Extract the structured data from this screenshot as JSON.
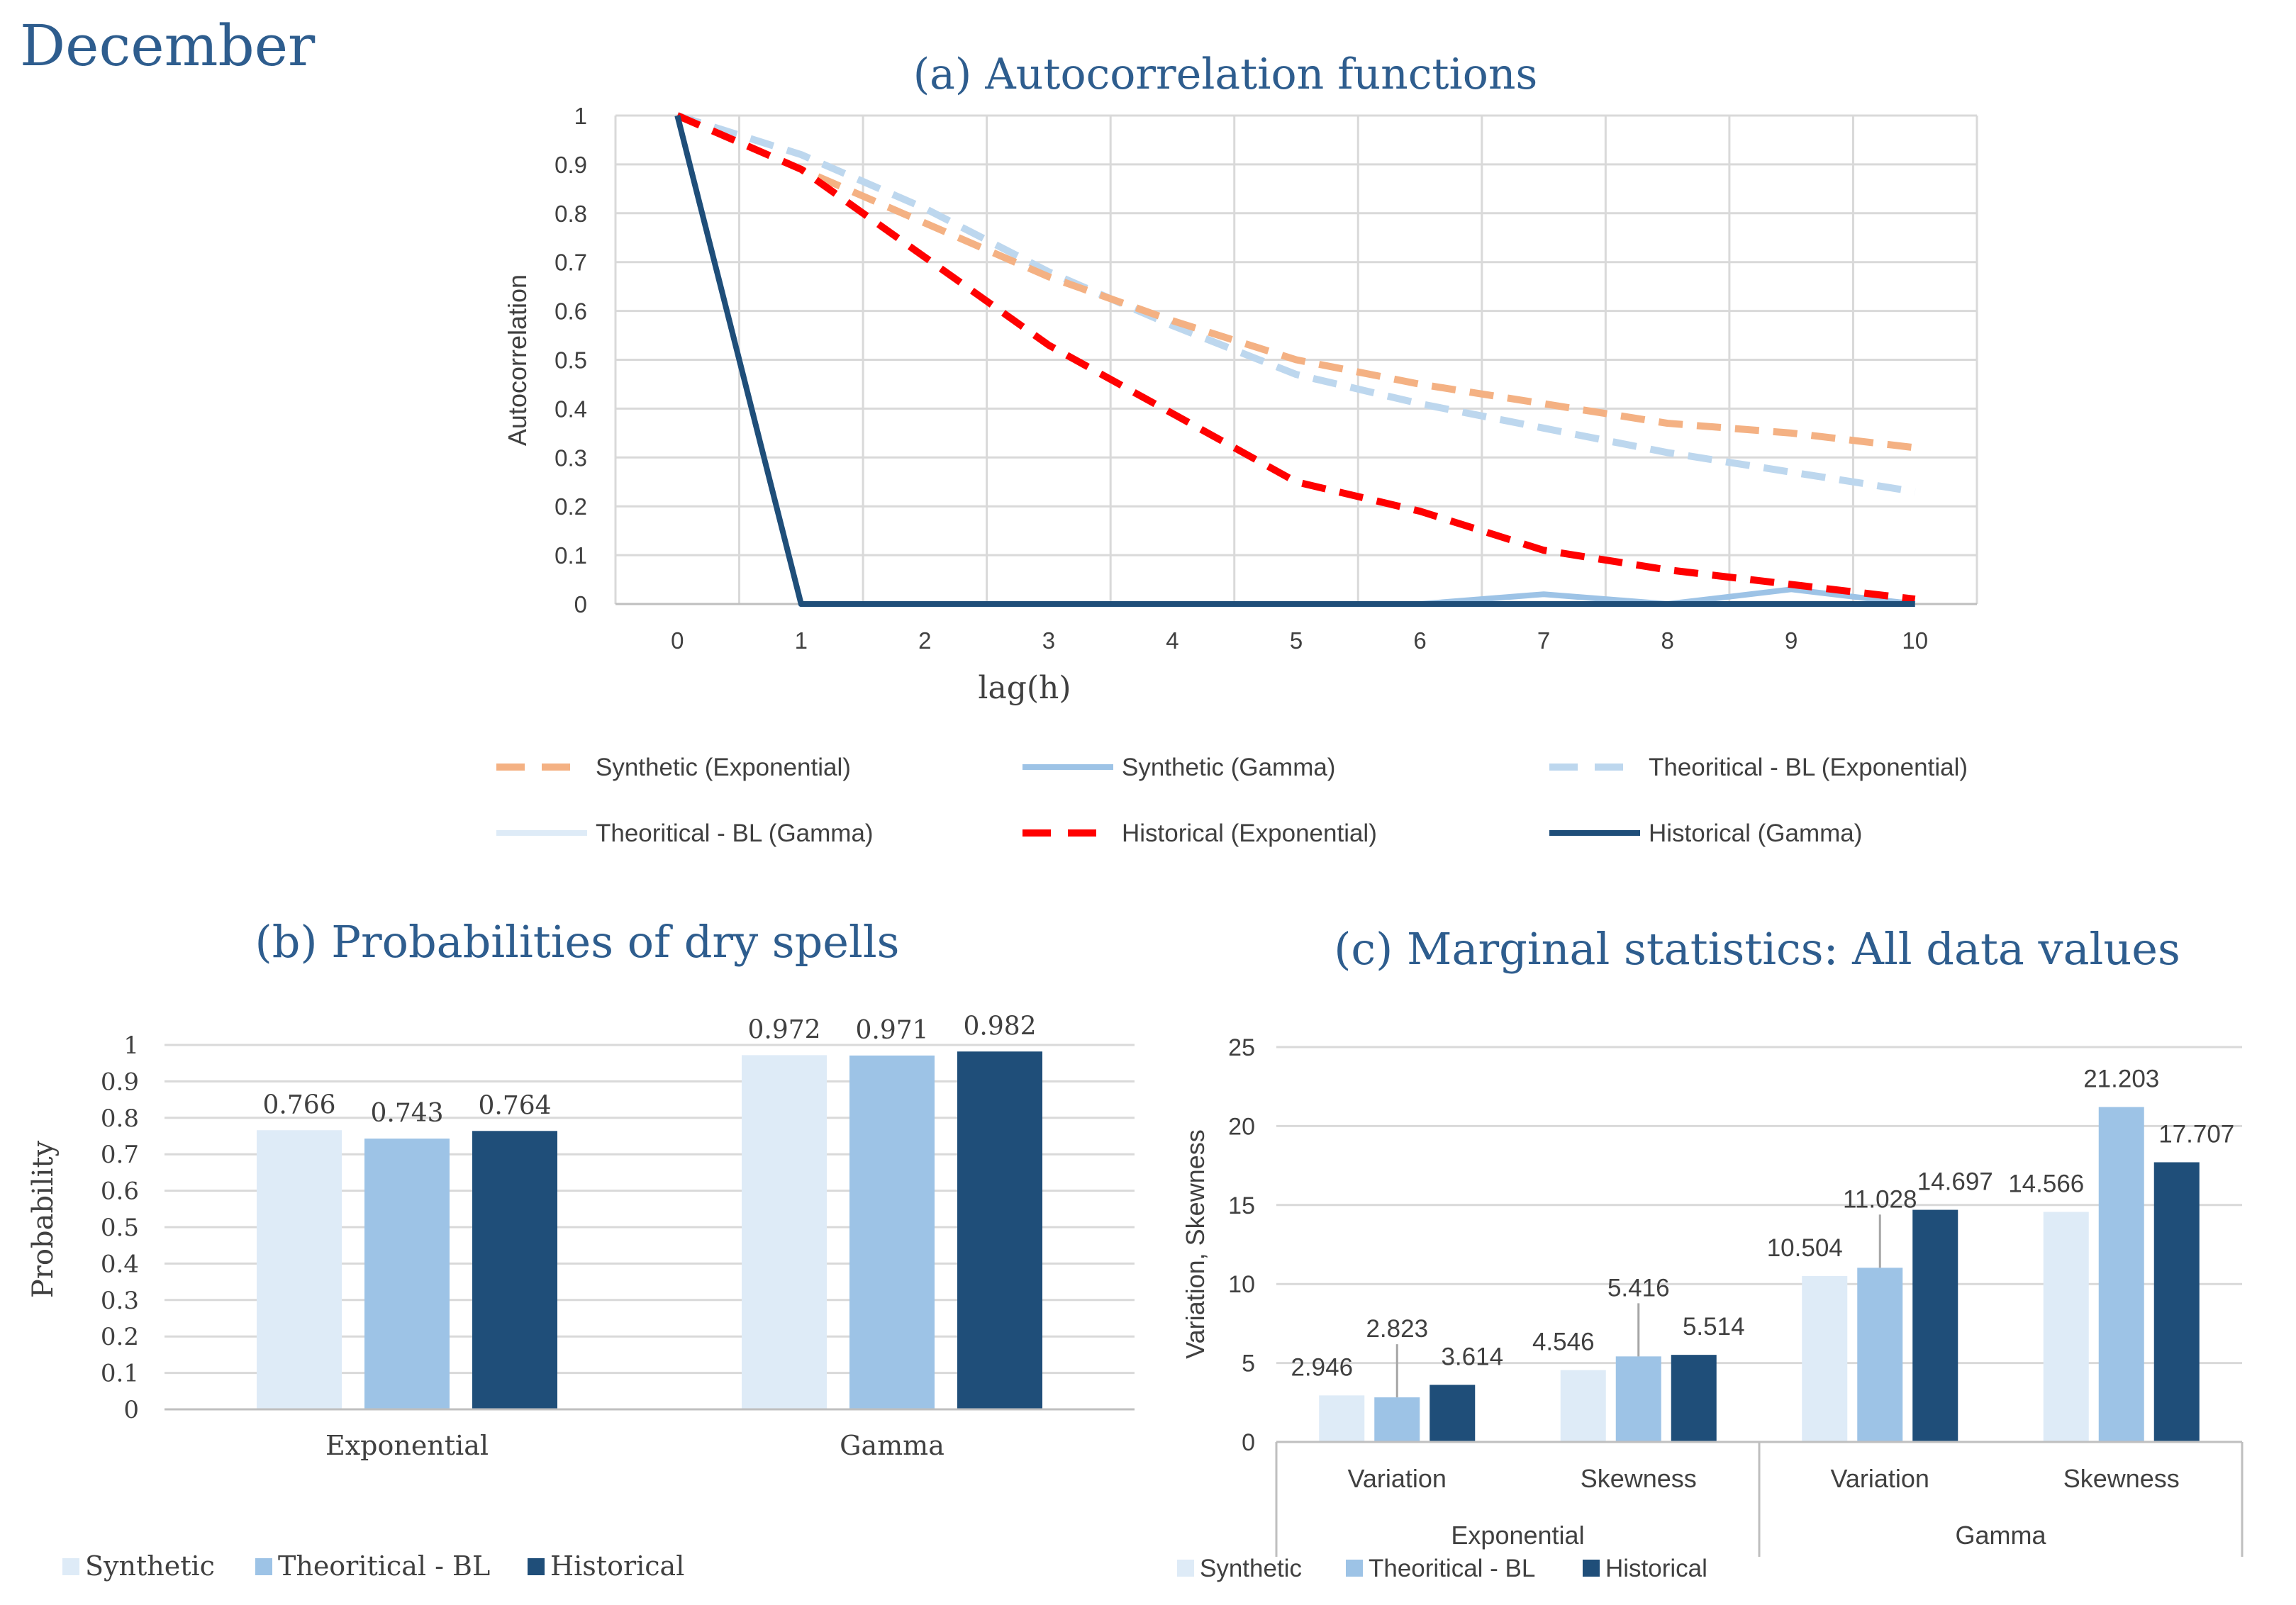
{
  "page": {
    "heading": "December"
  },
  "colors": {
    "synthetic_exp": "#F4B183",
    "synthetic_gamma": "#9DC3E6",
    "theo_exp": "#BDD7EE",
    "theo_gamma": "#DEEBF7",
    "hist_exp": "#FF0000",
    "hist_gamma": "#1F4E79",
    "bar_synthetic": "#DEEBF7",
    "bar_theoretical": "#9DC3E6",
    "bar_historical": "#1F4E79",
    "title": "#2E5D8E",
    "grid": "#D9D9D9",
    "text": "#404040"
  },
  "chart_data": [
    {
      "id": "a",
      "type": "line",
      "title": "(a) Autocorrelation functions",
      "xlabel": "lag(h)",
      "ylabel": "Autocorrelation",
      "x": [
        0,
        1,
        2,
        3,
        4,
        5,
        6,
        7,
        8,
        9,
        10
      ],
      "xlim": [
        0,
        10
      ],
      "ylim": [
        0,
        1
      ],
      "yticks": [
        "0",
        "0.1",
        "0.2",
        "0.3",
        "0.4",
        "0.5",
        "0.6",
        "0.7",
        "0.8",
        "0.9",
        "1"
      ],
      "grid": true,
      "series": [
        {
          "name": "Synthetic (Exponential)",
          "style": "dashed",
          "color": "#F4B183",
          "values": [
            1,
            0.89,
            0.78,
            0.67,
            0.58,
            0.5,
            0.45,
            0.41,
            0.37,
            0.35,
            0.32
          ]
        },
        {
          "name": "Synthetic (Gamma)",
          "style": "solid",
          "color": "#9DC3E6",
          "values": [
            1,
            0,
            0,
            0,
            0,
            0,
            0,
            0.02,
            0,
            0.03,
            0
          ]
        },
        {
          "name": "Theoritical - BL (Exponential)",
          "style": "dashed",
          "color": "#BDD7EE",
          "values": [
            1,
            0.92,
            0.81,
            0.68,
            0.57,
            0.47,
            0.41,
            0.36,
            0.31,
            0.27,
            0.23
          ]
        },
        {
          "name": "Theoritical - BL (Gamma)",
          "style": "solid",
          "color": "#DEEBF7",
          "values": [
            1,
            0,
            0,
            0,
            0,
            0,
            0,
            0,
            0,
            0,
            0
          ]
        },
        {
          "name": "Historical (Exponential)",
          "style": "dashed",
          "color": "#FF0000",
          "values": [
            1,
            0.89,
            0.71,
            0.53,
            0.39,
            0.25,
            0.19,
            0.11,
            0.07,
            0.04,
            0.01
          ]
        },
        {
          "name": "Historical (Gamma)",
          "style": "solid",
          "color": "#1F4E79",
          "values": [
            1,
            0,
            0,
            0,
            0,
            0,
            0,
            0,
            0,
            0,
            0
          ]
        }
      ]
    },
    {
      "id": "b",
      "type": "bar",
      "title": "(b) Probabilities of dry spells",
      "ylabel": "Probability",
      "categories": [
        "Exponential",
        "Gamma"
      ],
      "ylim": [
        0,
        1
      ],
      "yticks": [
        "0",
        "0.1",
        "0.2",
        "0.3",
        "0.4",
        "0.5",
        "0.6",
        "0.7",
        "0.8",
        "0.9",
        "1"
      ],
      "grid": true,
      "series": [
        {
          "name": "Synthetic",
          "color": "#DEEBF7",
          "values": [
            0.766,
            0.972
          ],
          "labels": [
            "0.766",
            "0.972"
          ]
        },
        {
          "name": "Theoritical - BL",
          "color": "#9DC3E6",
          "values": [
            0.743,
            0.971
          ],
          "labels": [
            "0.743",
            "0.971"
          ]
        },
        {
          "name": "Historical",
          "color": "#1F4E79",
          "values": [
            0.764,
            0.982
          ],
          "labels": [
            "0.764",
            "0.982"
          ]
        }
      ]
    },
    {
      "id": "c",
      "type": "bar",
      "title": "(c) Marginal statistics: All data values",
      "ylabel": "Variation, Skewness",
      "groups": [
        "Exponential",
        "Gamma"
      ],
      "categories": [
        "Variation",
        "Skewness",
        "Variation",
        "Skewness"
      ],
      "ylim": [
        0,
        25
      ],
      "yticks": [
        "0",
        "5",
        "10",
        "15",
        "20",
        "25"
      ],
      "grid": true,
      "series": [
        {
          "name": "Synthetic",
          "color": "#DEEBF7",
          "values": [
            2.946,
            4.546,
            10.504,
            14.566
          ],
          "labels": [
            "2.946",
            "4.546",
            "10.504",
            "14.566"
          ]
        },
        {
          "name": "Theoritical - BL",
          "color": "#9DC3E6",
          "values": [
            2.823,
            5.416,
            11.028,
            21.203
          ],
          "labels": [
            "2.823",
            "5.416",
            "11.028",
            "21.203"
          ]
        },
        {
          "name": "Historical",
          "color": "#1F4E79",
          "values": [
            3.614,
            5.514,
            14.697,
            17.707
          ],
          "labels": [
            "3.614",
            "5.514",
            "14.697",
            "17.707"
          ]
        }
      ]
    }
  ]
}
